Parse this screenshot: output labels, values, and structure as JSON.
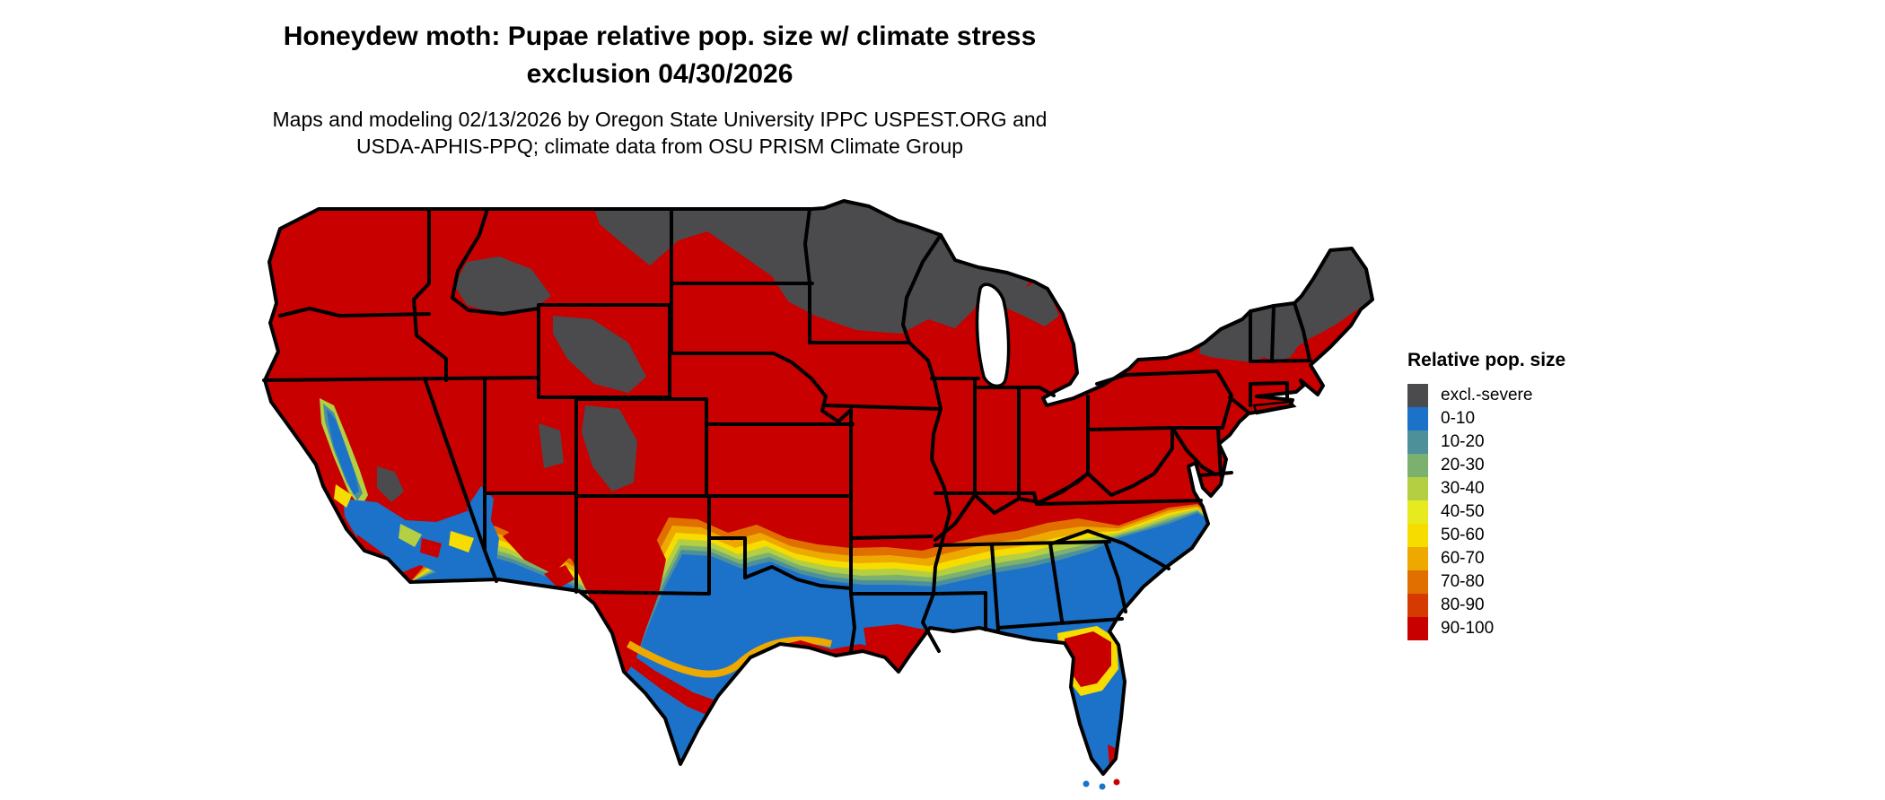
{
  "title": {
    "line1": "Honeydew moth: Pupae relative pop. size w/ climate stress",
    "line2": "exclusion 04/30/2026"
  },
  "subtitle": {
    "line1": "Maps and modeling 02/13/2026 by Oregon State University IPPC USPEST.ORG and",
    "line2": "USDA-APHIS-PPQ; climate data from OSU PRISM Climate Group"
  },
  "legend": {
    "title": "Relative pop. size",
    "entries": [
      {
        "label": "excl.-severe",
        "color": "#4b4b4d"
      },
      {
        "label": "0-10",
        "color": "#1c72c8"
      },
      {
        "label": "10-20",
        "color": "#4d909a"
      },
      {
        "label": "20-30",
        "color": "#7cb06e"
      },
      {
        "label": "30-40",
        "color": "#b4cf42"
      },
      {
        "label": "40-50",
        "color": "#e6ea1e"
      },
      {
        "label": "50-60",
        "color": "#f7dc00"
      },
      {
        "label": "60-70",
        "color": "#eda900"
      },
      {
        "label": "70-80",
        "color": "#e06f00"
      },
      {
        "label": "80-90",
        "color": "#d63a00"
      },
      {
        "label": "90-100",
        "color": "#c80000"
      }
    ]
  },
  "map": {
    "region": "Continental United States",
    "border_color": "#000000",
    "background_color": "#ffffff"
  }
}
